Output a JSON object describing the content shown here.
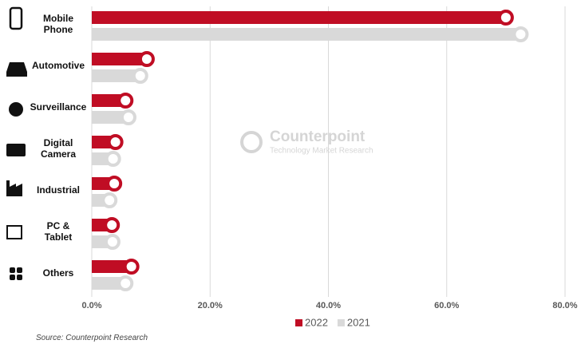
{
  "chart_data": {
    "type": "bar",
    "orientation": "horizontal",
    "categories": [
      "Mobile\nPhone",
      "Automotive",
      "Surveillance",
      "Digital\nCamera",
      "Industrial",
      "PC &\nTablet",
      "Others"
    ],
    "series": [
      {
        "name": "2022",
        "color": "#c00d24",
        "values": [
          70,
          9.3,
          5.7,
          4.0,
          3.8,
          3.4,
          6.7
        ]
      },
      {
        "name": "2021",
        "color": "#d9d9d9",
        "values": [
          72.5,
          8.2,
          6.2,
          3.6,
          3.0,
          3.5,
          5.7
        ]
      }
    ],
    "xlim": [
      0,
      80
    ],
    "xticks": [
      {
        "value": 0,
        "label": "0.0%"
      },
      {
        "value": 20,
        "label": "20.0%"
      },
      {
        "value": 40,
        "label": "40.0%"
      },
      {
        "value": 60,
        "label": "60.0%"
      },
      {
        "value": 80,
        "label": "80.0%"
      }
    ],
    "grid": true,
    "legend": "bottom",
    "watermark": {
      "title": "Counterpoint",
      "subtitle": "Technology Market Research"
    },
    "source": "Source: Counterpoint Research"
  }
}
